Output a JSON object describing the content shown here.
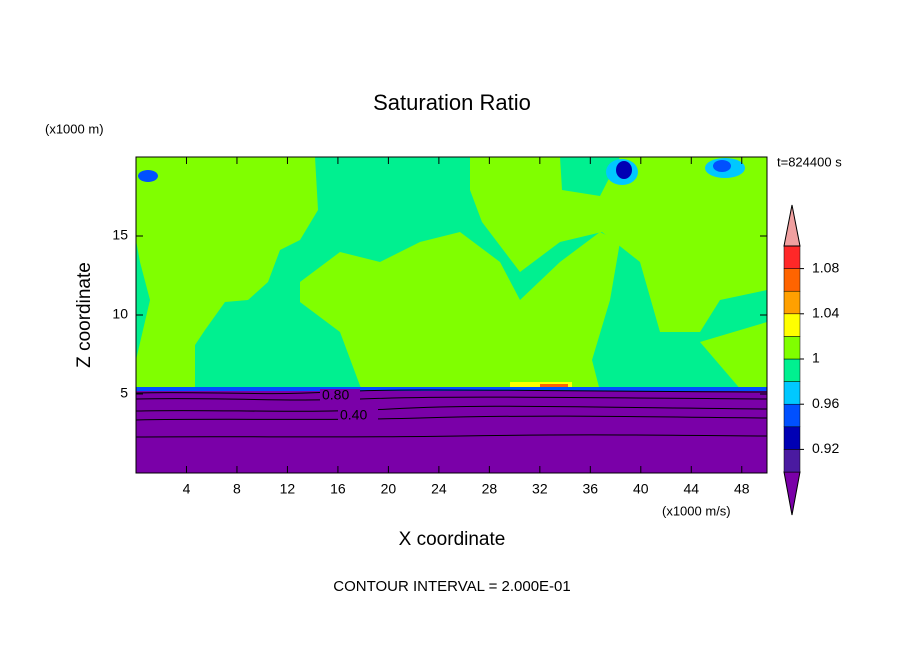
{
  "chart_data": {
    "type": "contour",
    "title": "Saturation Ratio",
    "xlabel": "X coordinate",
    "ylabel": "Z coordinate",
    "x_unit_label": "(x1000 m/s)",
    "y_unit_label": "(x1000 m)",
    "time_label": "t=824400 s",
    "footnote": "CONTOUR INTERVAL = 2.000E-01",
    "xlim": [
      0,
      50
    ],
    "xticks": [
      4,
      8,
      12,
      16,
      20,
      24,
      28,
      32,
      36,
      40,
      44,
      48
    ],
    "ylim": [
      0,
      20
    ],
    "yticks": [
      5,
      10,
      15
    ],
    "contour_labels": [
      {
        "value": 0.8,
        "label": "0.80"
      },
      {
        "value": 0.4,
        "label": "0.40"
      }
    ],
    "colorbar": {
      "levels": [
        0.9,
        0.92,
        0.94,
        0.96,
        0.98,
        1,
        1.02,
        1.04,
        1.06,
        1.08,
        1.1
      ],
      "colors": [
        "#7a00a8",
        "#4a1aa0",
        "#0000b4",
        "#0050ff",
        "#00c8ff",
        "#00f090",
        "#80ff00",
        "#ffff00",
        "#ffa000",
        "#ff6400",
        "#ff2828",
        "#f0a0a0"
      ],
      "ticks": [
        0.92,
        0.96,
        1,
        1.04,
        1.08
      ]
    }
  }
}
